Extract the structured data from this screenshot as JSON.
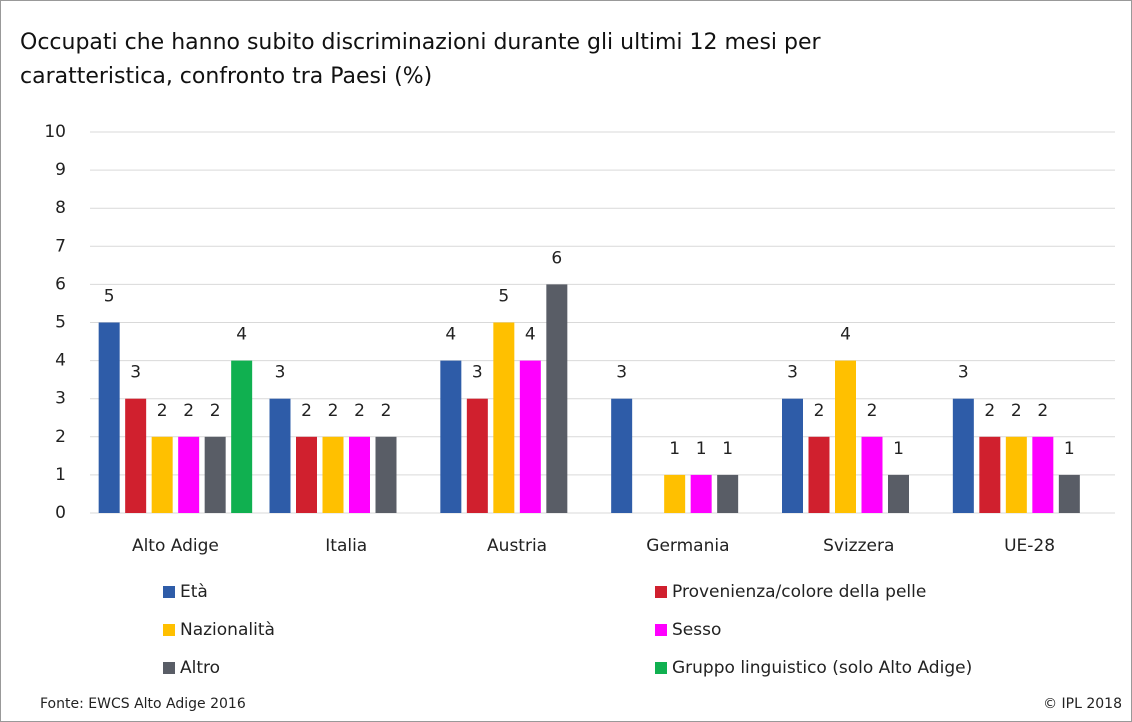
{
  "chart_data": {
    "type": "bar",
    "title": "Occupati che hanno subito discriminazioni durante gli ultimi 12 mesi per caratteristica, confronto tra Paesi (%)",
    "categories": [
      "Alto Adige",
      "Italia",
      "Austria",
      "Germania",
      "Svizzera",
      "UE-28"
    ],
    "series": [
      {
        "name": "Età",
        "color": "#2e5ca8",
        "values": [
          5,
          3,
          4,
          3,
          3,
          3
        ]
      },
      {
        "name": "Provenienza/colore della pelle",
        "color": "#d0202e",
        "values": [
          3,
          2,
          3,
          null,
          2,
          2
        ]
      },
      {
        "name": "Nazionalità",
        "color": "#ffc000",
        "values": [
          2,
          2,
          5,
          1,
          4,
          2
        ]
      },
      {
        "name": "Sesso",
        "color": "#ff00ff",
        "values": [
          2,
          2,
          4,
          1,
          2,
          2
        ]
      },
      {
        "name": "Altro",
        "color": "#595d66",
        "values": [
          2,
          2,
          6,
          1,
          1,
          1
        ]
      },
      {
        "name": "Gruppo linguistico (solo Alto Adige)",
        "color": "#10b050",
        "values": [
          4,
          null,
          null,
          null,
          null,
          null
        ]
      }
    ],
    "ylim": [
      0,
      10
    ],
    "yticks": [
      0,
      1,
      2,
      3,
      4,
      5,
      6,
      7,
      8,
      9,
      10
    ],
    "grid": true,
    "source": "Fonte: EWCS Alto Adige 2016",
    "copyright": "© IPL 2018"
  }
}
